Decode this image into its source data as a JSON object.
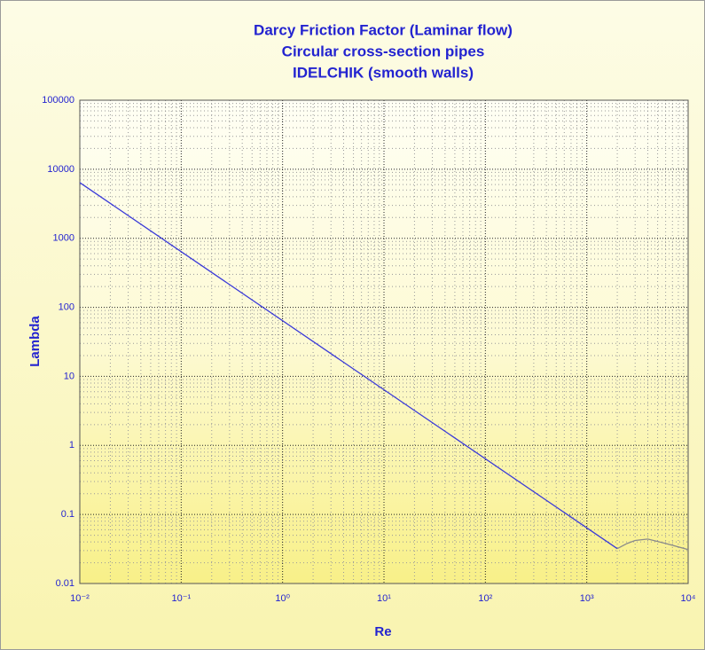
{
  "chart_data": {
    "type": "line",
    "title": [
      "Darcy Friction Factor (Laminar flow)",
      "Circular cross-section pipes",
      "IDELCHIK (smooth walls)"
    ],
    "xlabel": "Re",
    "ylabel": "Lambda",
    "xscale": "log",
    "yscale": "log",
    "grid": true,
    "minor_grid": true,
    "xlim": [
      0.01,
      10000
    ],
    "ylim": [
      0.01,
      100000
    ],
    "xticks": [
      {
        "value": 0.01,
        "label": "10⁻²"
      },
      {
        "value": 0.1,
        "label": "10⁻¹"
      },
      {
        "value": 1,
        "label": "10⁰"
      },
      {
        "value": 10,
        "label": "10¹"
      },
      {
        "value": 100,
        "label": "10²"
      },
      {
        "value": 1000,
        "label": "10³"
      },
      {
        "value": 10000,
        "label": "10⁴"
      }
    ],
    "yticks": [
      0.01,
      0.1,
      1,
      10,
      100,
      1000,
      10000,
      100000
    ],
    "series": [
      {
        "color": "#3a3ad8",
        "x": [
          0.01,
          2000
        ],
        "values": [
          6400,
          0.032
        ]
      },
      {
        "color": "#8a8a8a",
        "x": [
          2000,
          2500,
          3000,
          4000,
          6000,
          10000
        ],
        "values": [
          0.032,
          0.038,
          0.042,
          0.044,
          0.038,
          0.031
        ]
      }
    ]
  }
}
